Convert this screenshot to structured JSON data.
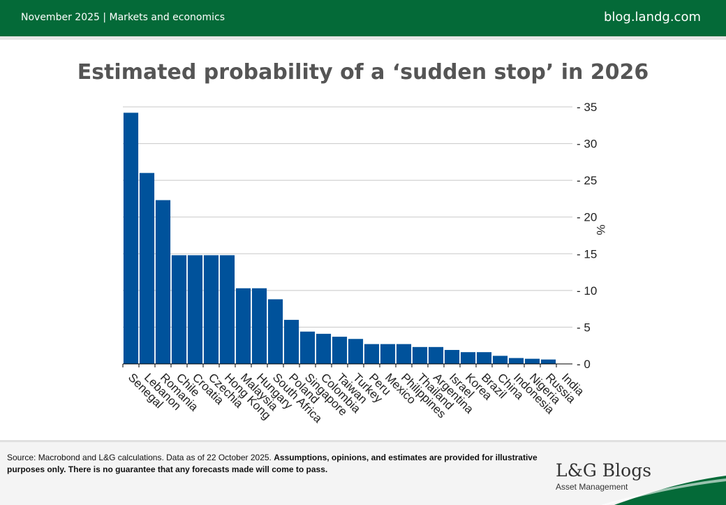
{
  "header": {
    "date_section": "November 2025 | Markets and economics",
    "site": "blog.landg.com"
  },
  "colors": {
    "brand_green": "#046a38",
    "bar_blue": "#00529b",
    "gridline": "#c8c8c8"
  },
  "chart_data": {
    "type": "bar",
    "title": "Estimated probability of a ‘sudden stop’ in 2026",
    "xlabel": "",
    "ylabel": "%",
    "y_axis_side": "right",
    "ylim": [
      0,
      35
    ],
    "yticks": [
      0,
      5,
      10,
      15,
      20,
      25,
      30,
      35
    ],
    "grid": "horizontal",
    "categories": [
      "Senegal",
      "Lebanon",
      "Romania",
      "Chile",
      "Croatia",
      "Czechia",
      "Hong Kong",
      "Malaysia",
      "Hungary",
      "South Africa",
      "Poland",
      "Singapore",
      "Colombia",
      "Taiwan",
      "Turkey",
      "Peru",
      "Mexico",
      "Philippines",
      "Thailand",
      "Argentina",
      "Israel",
      "Korea",
      "Brazil",
      "China",
      "Indonesia",
      "Nigeria",
      "Russia",
      "India"
    ],
    "values": [
      34.2,
      26.0,
      22.3,
      14.8,
      14.8,
      14.8,
      14.8,
      10.3,
      10.3,
      8.8,
      6.0,
      4.4,
      4.1,
      3.7,
      3.4,
      2.7,
      2.7,
      2.7,
      2.3,
      2.3,
      1.9,
      1.6,
      1.6,
      1.1,
      0.8,
      0.7,
      0.6,
      0.0
    ]
  },
  "footer": {
    "source_plain": "Source: Macrobond and L&G calculations. Data as of 22 October 2025. ",
    "source_bold": "Assumptions, opinions, and estimates are provided for illustrative purposes only. There is no guarantee that any forecasts made will come to pass.",
    "logo_title": "L&G Blogs",
    "logo_subtitle": "Asset Management"
  }
}
